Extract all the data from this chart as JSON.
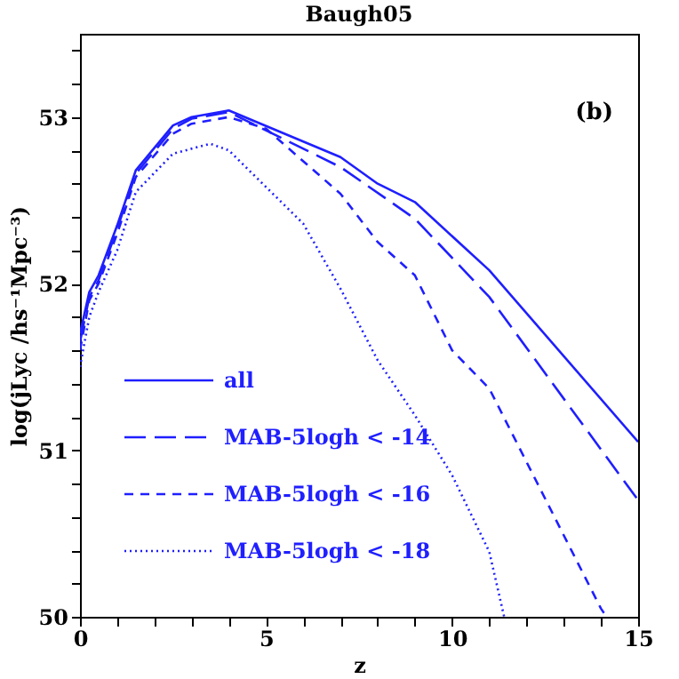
{
  "chart_data": {
    "type": "line",
    "title": "Baugh05",
    "xlabel": "z",
    "ylabel": "log(jLyc /hs⁻¹Mpc⁻³)",
    "annotations": [
      "(b)"
    ],
    "xlim": [
      0,
      15
    ],
    "ylim": [
      50,
      53.5
    ],
    "xticks": [
      0,
      {
        "value": 1,
        "label": null
      },
      {
        "value": 2,
        "label": null
      },
      {
        "value": 3,
        "label": null
      },
      {
        "value": 4,
        "label": null
      },
      5,
      {
        "value": 6,
        "label": null
      },
      {
        "value": 7,
        "label": null
      },
      {
        "value": 8,
        "label": null
      },
      {
        "value": 9,
        "label": null
      },
      10,
      {
        "value": 11,
        "label": null
      },
      {
        "value": 12,
        "label": null
      },
      {
        "value": 13,
        "label": null
      },
      {
        "value": 14,
        "label": null
      },
      15
    ],
    "yticks": [
      50,
      {
        "value": 50.2,
        "label": null
      },
      {
        "value": 50.4,
        "label": null
      },
      {
        "value": 50.6,
        "label": null
      },
      {
        "value": 50.8,
        "label": null
      },
      51,
      {
        "value": 51.2,
        "label": null
      },
      {
        "value": 51.4,
        "label": null
      },
      {
        "value": 51.6,
        "label": null
      },
      {
        "value": 51.8,
        "label": null
      },
      52,
      {
        "value": 52.2,
        "label": null
      },
      {
        "value": 52.4,
        "label": null
      },
      {
        "value": 52.6,
        "label": null
      },
      {
        "value": 52.8,
        "label": null
      },
      53,
      {
        "value": 53.2,
        "label": null
      },
      {
        "value": 53.4,
        "label": null
      }
    ],
    "legend": "bottom left",
    "grid": false,
    "marker": "none",
    "series": [
      {
        "name": "all",
        "color": "#1f1fff",
        "line_style": "solid",
        "x": [
          0,
          0.25,
          0.5,
          1,
          1.5,
          2.5,
          3,
          4,
          7,
          8,
          9,
          11,
          15
        ],
        "values": [
          51.7,
          51.95,
          52.05,
          52.35,
          52.68,
          52.95,
          53.0,
          53.04,
          52.76,
          52.6,
          52.49,
          52.08,
          51.05
        ]
      },
      {
        "name": "MAB-5logh < -14",
        "color": "#1f1fff",
        "line_style": "longdash",
        "x": [
          0,
          0.25,
          0.5,
          1,
          1.5,
          2.5,
          3,
          4,
          7,
          9,
          11,
          15
        ],
        "values": [
          51.65,
          51.92,
          52.02,
          52.33,
          52.66,
          52.93,
          52.99,
          53.03,
          52.7,
          52.39,
          51.92,
          50.7
        ]
      },
      {
        "name": "MAB-5logh < -16",
        "color": "#1f1fff",
        "line_style": "dashed",
        "x": [
          0,
          0.25,
          0.5,
          1,
          1.5,
          2.5,
          3,
          4,
          5,
          7,
          8,
          9,
          10,
          11,
          14,
          14.15
        ],
        "values": [
          51.6,
          51.9,
          52.0,
          52.3,
          52.64,
          52.9,
          52.96,
          53.0,
          52.93,
          52.54,
          52.25,
          52.05,
          51.6,
          51.37,
          50.05,
          50.0
        ]
      },
      {
        "name": "MAB-5logh < -18",
        "color": "#1f1fff",
        "line_style": "dotted",
        "x": [
          0,
          0.25,
          0.5,
          1,
          1.5,
          2.5,
          3.5,
          4,
          6,
          7,
          8,
          9,
          10,
          11,
          11.4
        ],
        "values": [
          51.5,
          51.8,
          51.95,
          52.2,
          52.55,
          52.78,
          52.84,
          52.8,
          52.36,
          51.97,
          51.54,
          51.21,
          50.85,
          50.39,
          50.0
        ]
      }
    ]
  }
}
